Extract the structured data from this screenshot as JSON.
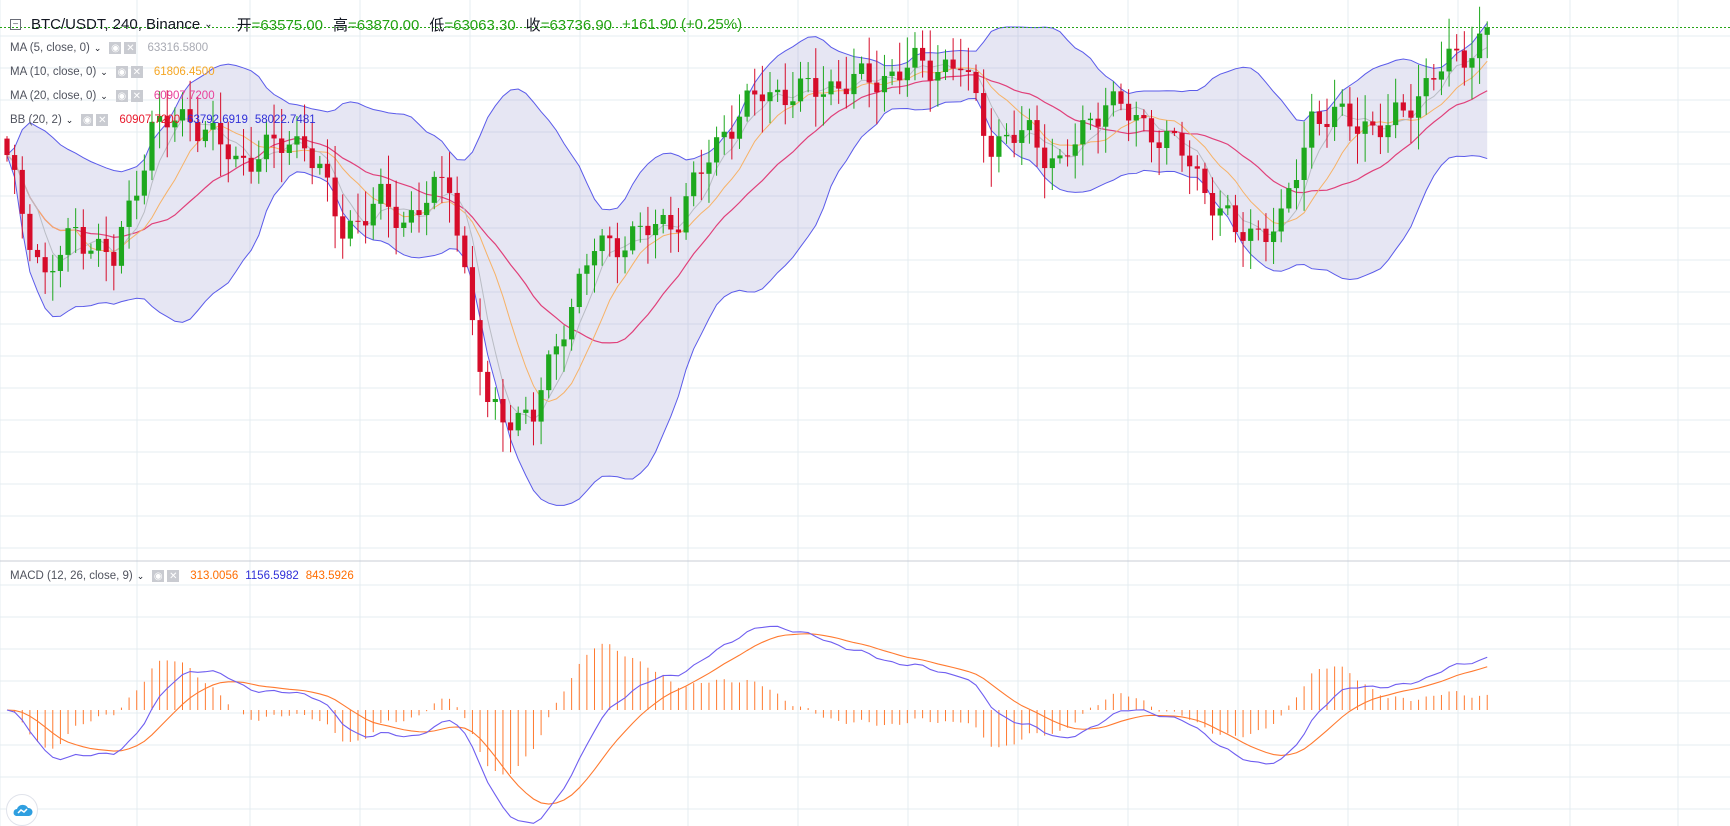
{
  "header": {
    "symbol": "BTC/USDT, 240, Binance",
    "open_label": "开",
    "open_value": "=63575.00",
    "high_label": "高",
    "high_value": "=63870.00",
    "low_label": "低",
    "low_value": "=63063.30",
    "close_label": "收",
    "close_value": "=63736.90",
    "change": "+161.90 (+0.25%)"
  },
  "indicators": [
    {
      "label": "MA (5, close, 0)",
      "values": [
        {
          "text": "63316.5800",
          "color": "#a8aab3"
        }
      ]
    },
    {
      "label": "MA (10, close, 0)",
      "values": [
        {
          "text": "61806.4500",
          "color": "#f5a623"
        }
      ]
    },
    {
      "label": "MA (20, close, 0)",
      "values": [
        {
          "text": "60907.7200",
          "color": "#e8409a"
        }
      ]
    },
    {
      "label": "BB (20, 2)",
      "values": [
        {
          "text": "60907.7200",
          "color": "#e8192c"
        },
        {
          "text": "63792.6919",
          "color": "#2f2fd8"
        },
        {
          "text": "58022.7481",
          "color": "#2f2fd8"
        }
      ]
    },
    {
      "label": "MACD (12, 26, close, 9)",
      "values": [
        {
          "text": "313.0056",
          "color": "#ff6d00"
        },
        {
          "text": "1156.5982",
          "color": "#2f2fd8"
        },
        {
          "text": "843.5926",
          "color": "#ff6d00"
        }
      ]
    }
  ],
  "colors": {
    "up": "#1ea81e",
    "down": "#d60c2a",
    "bb_band": "#5b5bea",
    "bb_fill": "rgba(140,140,200,0.22)",
    "ma5": "#b9bcc4",
    "ma10": "#f7b267",
    "ma20": "#e0407a",
    "macd_line": "#6f5ef0",
    "signal_line": "#ff7a30",
    "histogram": "#ff7a30",
    "last_price_line": "#26a416",
    "grid": "#e4ecf1"
  },
  "icons": {
    "collapse": "collapse-square-icon",
    "eye": "eye-icon",
    "close": "close-icon",
    "chevron": "chevron-down-icon",
    "logo": "tradingview-cloud-icon"
  },
  "chart_data": {
    "type": "candlestick",
    "symbol": "BTC/USDT",
    "interval": "240",
    "exchange": "Binance",
    "last_bar": {
      "open": 63575.0,
      "high": 63870.0,
      "low": 63063.3,
      "close": 63736.9,
      "change": 161.9,
      "change_pct": 0.25
    },
    "ohlc_window": {
      "low": 52500,
      "high": 63900,
      "start_price": 60800,
      "end_price": 63736.9
    },
    "ma": {
      "ma5": 63316.58,
      "ma10": 61806.45,
      "ma20": 60907.72
    },
    "bollinger": {
      "basis": 60907.72,
      "upper": 63792.6919,
      "lower": 58022.7481
    },
    "macd": {
      "histogram": 313.0056,
      "macd": 1156.5982,
      "signal": 843.5926
    },
    "grid": true
  }
}
